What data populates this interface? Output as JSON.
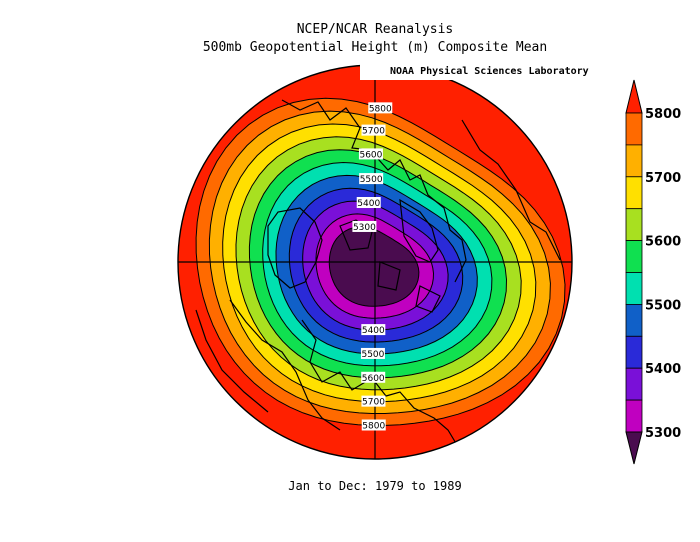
{
  "title": "NCEP/NCAR Reanalysis",
  "subtitle": "500mb Geopotential Height (m) Composite Mean",
  "credit": "NOAA Physical Sciences Laboratory",
  "period": "Jan to Dec: 1979 to 1989",
  "chart_data": {
    "type": "heatmap",
    "projection": "north-polar-stereographic",
    "variable": "500mb Geopotential Height",
    "units": "m",
    "contour_interval": 50,
    "levels": [
      5300,
      5350,
      5400,
      5450,
      5500,
      5550,
      5600,
      5650,
      5700,
      5750,
      5800
    ],
    "colorbar_ticks": [
      "5300",
      "5400",
      "5500",
      "5600",
      "5700",
      "5800"
    ],
    "colors": [
      "#4a0c4f",
      "#c000c0",
      "#7a10d8",
      "#2a2ad8",
      "#1060c8",
      "#00e0b0",
      "#10e050",
      "#a8e020",
      "#ffe000",
      "#ffb000",
      "#ff6a00",
      "#ff2000"
    ],
    "contour_labels": [
      {
        "text": "5300"
      },
      {
        "text": "5400"
      },
      {
        "text": "5500"
      },
      {
        "text": "5600"
      },
      {
        "text": "5700"
      },
      {
        "text": "5800"
      },
      {
        "text": "5400"
      },
      {
        "text": "5500"
      },
      {
        "text": "5600"
      },
      {
        "text": "5700"
      },
      {
        "text": "5800"
      }
    ]
  }
}
